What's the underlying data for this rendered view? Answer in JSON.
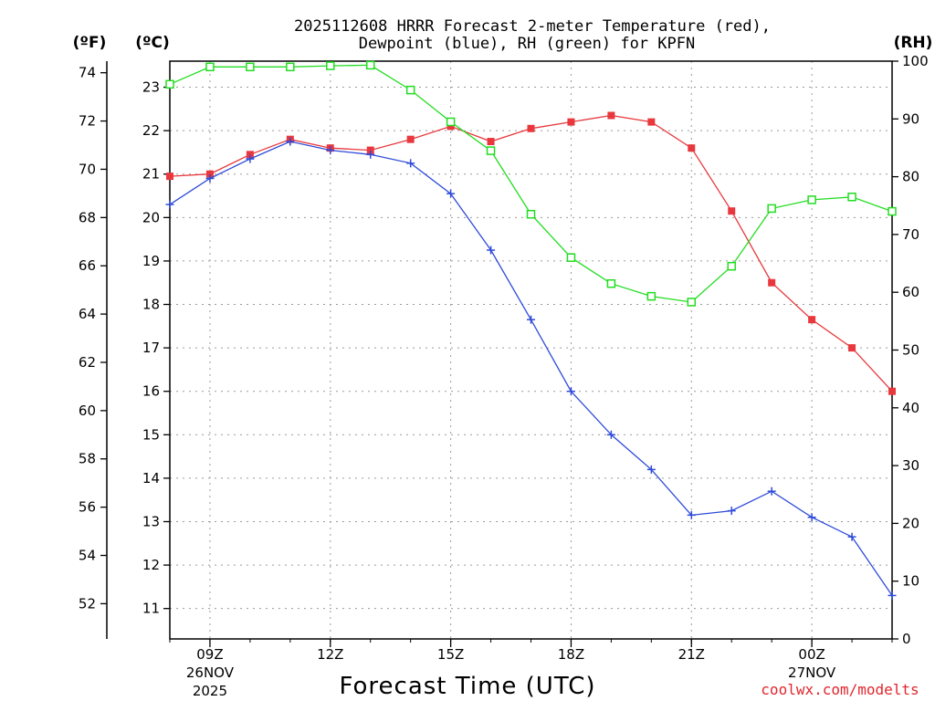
{
  "chart_data": {
    "type": "line",
    "title_line1": "2025112608 HRRR Forecast 2-meter Temperature (red),",
    "title_line2": "Dewpoint (blue), RH (green) for KPFN",
    "xlabel": "Forecast Time (UTC)",
    "credit": "coolwx.com/modelts",
    "units": {
      "f": "(ºF)",
      "c": "(ºC)",
      "rh": "(RH)"
    },
    "x_hours": [
      8,
      9,
      10,
      11,
      12,
      13,
      14,
      15,
      16,
      17,
      18,
      19,
      20,
      21,
      22,
      23,
      24,
      25,
      26
    ],
    "xlim": [
      8,
      26
    ],
    "x_ticks": [
      {
        "hour": 9,
        "label": "09Z",
        "date": "26NOV",
        "year": "2025"
      },
      {
        "hour": 12,
        "label": "12Z",
        "date": "",
        "year": ""
      },
      {
        "hour": 15,
        "label": "15Z",
        "date": "",
        "year": ""
      },
      {
        "hour": 18,
        "label": "18Z",
        "date": "",
        "year": ""
      },
      {
        "hour": 21,
        "label": "21Z",
        "date": "",
        "year": ""
      },
      {
        "hour": 24,
        "label": "00Z",
        "date": "27NOV",
        "year": ""
      }
    ],
    "f_axis": {
      "ticks": [
        "52",
        "54",
        "56",
        "58",
        "60",
        "62",
        "64",
        "66",
        "68",
        "70",
        "72",
        "74"
      ]
    },
    "c_axis": {
      "ylim": [
        10.3,
        23.6
      ],
      "ticks": [
        "11",
        "12",
        "13",
        "14",
        "15",
        "16",
        "17",
        "18",
        "19",
        "20",
        "21",
        "22",
        "23"
      ]
    },
    "rh_axis": {
      "ylim": [
        0,
        100
      ],
      "ticks": [
        "0",
        "10",
        "20",
        "30",
        "40",
        "50",
        "60",
        "70",
        "80",
        "90",
        "100"
      ]
    },
    "series": [
      {
        "name": "Temperature",
        "units": "C",
        "color": "#e8383d",
        "marker": "filled-square",
        "values": [
          20.95,
          21.0,
          21.45,
          21.8,
          21.6,
          21.55,
          21.8,
          22.1,
          21.75,
          22.05,
          22.2,
          22.35,
          22.2,
          21.6,
          20.15,
          18.5,
          17.65,
          17.0,
          16.0
        ]
      },
      {
        "name": "Dewpoint",
        "units": "C",
        "color": "#2e4bd8",
        "marker": "plus",
        "values": [
          20.3,
          20.9,
          21.35,
          21.75,
          21.55,
          21.45,
          21.25,
          20.55,
          19.25,
          17.65,
          16.0,
          15.0,
          14.2,
          13.15,
          13.25,
          13.7,
          13.1,
          12.65,
          11.3
        ]
      },
      {
        "name": "RH",
        "units": "%",
        "color": "#22dd22",
        "marker": "open-square",
        "values": [
          96,
          99,
          99,
          99,
          99.2,
          99.3,
          95,
          89.5,
          84.5,
          73.5,
          66,
          61.5,
          59.3,
          58.3,
          64.5,
          74.5,
          76,
          76.5,
          74
        ]
      }
    ]
  }
}
